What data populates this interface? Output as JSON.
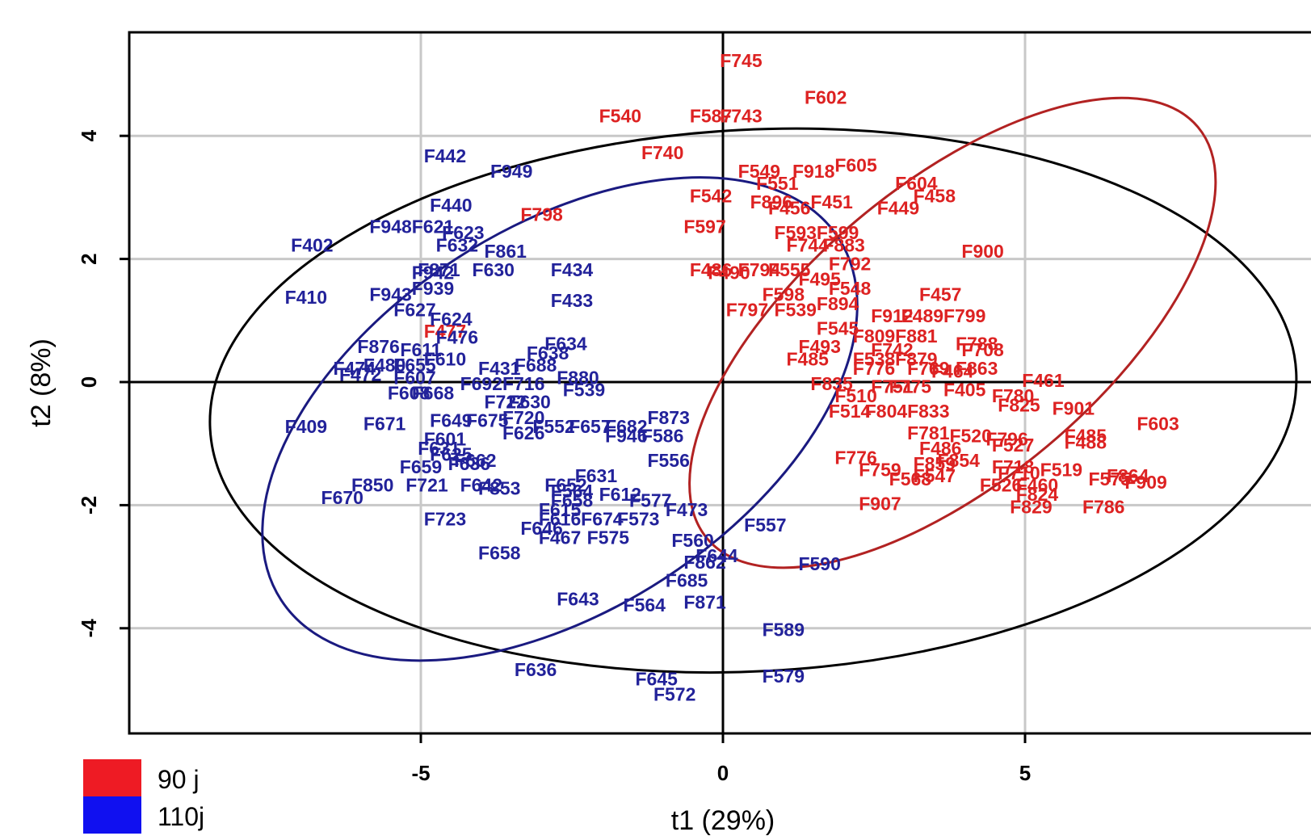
{
  "chart_data": {
    "type": "scatter",
    "xlabel": "t1 (29%)",
    "ylabel": "t2 (8%)",
    "xlim": [
      -9.5,
      9.6
    ],
    "ylim": [
      -5.7,
      5.7
    ],
    "x_ticks": [
      {
        "value": -5,
        "label": "-5"
      },
      {
        "value": 0,
        "label": "0"
      },
      {
        "value": 5,
        "label": "5"
      }
    ],
    "y_ticks": [
      {
        "value": -4,
        "label": "-4"
      },
      {
        "value": -2,
        "label": "-2"
      },
      {
        "value": 0,
        "label": "0"
      },
      {
        "value": 2,
        "label": "2"
      },
      {
        "value": 4,
        "label": "4"
      }
    ],
    "grid": true,
    "legend": {
      "position": "bottom-left"
    },
    "ellipses": [
      {
        "name": "hotelling",
        "color": "#000000",
        "cx": 0.5,
        "cy": -0.3,
        "rx": 9.0,
        "ry": 4.4,
        "angle": -3
      },
      {
        "name": "group-110j",
        "color": "#1a1a80",
        "cx": -2.7,
        "cy": -0.6,
        "rx": 5.5,
        "ry": 3.1,
        "angle": -33
      },
      {
        "name": "group-90j",
        "color": "#b22222",
        "cx": 3.8,
        "cy": 0.8,
        "rx": 5.3,
        "ry": 2.4,
        "angle": -40
      }
    ],
    "series": [
      {
        "name": "90 j",
        "color": "#dd2222",
        "points": [
          {
            "label": "F745",
            "x": 0.3,
            "y": 5.2
          },
          {
            "label": "F540",
            "x": -1.7,
            "y": 4.3
          },
          {
            "label": "F587",
            "x": -0.2,
            "y": 4.3
          },
          {
            "label": "F743",
            "x": 0.3,
            "y": 4.3
          },
          {
            "label": "F602",
            "x": 1.7,
            "y": 4.6
          },
          {
            "label": "F740",
            "x": -1.0,
            "y": 3.7
          },
          {
            "label": "F549",
            "x": 0.6,
            "y": 3.4
          },
          {
            "label": "F918",
            "x": 1.5,
            "y": 3.4
          },
          {
            "label": "F605",
            "x": 2.2,
            "y": 3.5
          },
          {
            "label": "F604",
            "x": 3.2,
            "y": 3.2
          },
          {
            "label": "F551",
            "x": 0.9,
            "y": 3.2
          },
          {
            "label": "F542",
            "x": -0.2,
            "y": 3.0
          },
          {
            "label": "F896",
            "x": 0.8,
            "y": 2.9
          },
          {
            "label": "F451",
            "x": 1.8,
            "y": 2.9
          },
          {
            "label": "F458",
            "x": 3.5,
            "y": 3.0
          },
          {
            "label": "F456",
            "x": 1.1,
            "y": 2.8
          },
          {
            "label": "F449",
            "x": 2.9,
            "y": 2.8
          },
          {
            "label": "F798",
            "x": -3.0,
            "y": 2.7
          },
          {
            "label": "F597",
            "x": -0.3,
            "y": 2.5
          },
          {
            "label": "F593",
            "x": 1.2,
            "y": 2.4
          },
          {
            "label": "F599",
            "x": 1.9,
            "y": 2.4
          },
          {
            "label": "F744",
            "x": 1.4,
            "y": 2.2
          },
          {
            "label": "F883",
            "x": 2.0,
            "y": 2.2
          },
          {
            "label": "F900",
            "x": 4.3,
            "y": 2.1
          },
          {
            "label": "F792",
            "x": 2.1,
            "y": 1.9
          },
          {
            "label": "F486",
            "x": -0.2,
            "y": 1.8
          },
          {
            "label": "F794",
            "x": 0.6,
            "y": 1.8
          },
          {
            "label": "F555",
            "x": 1.1,
            "y": 1.8
          },
          {
            "label": "F490",
            "x": 0.1,
            "y": 1.75
          },
          {
            "label": "F495",
            "x": 1.6,
            "y": 1.65
          },
          {
            "label": "F548",
            "x": 2.1,
            "y": 1.5
          },
          {
            "label": "F598",
            "x": 1.0,
            "y": 1.4
          },
          {
            "label": "F894",
            "x": 1.9,
            "y": 1.25
          },
          {
            "label": "F457",
            "x": 3.6,
            "y": 1.4
          },
          {
            "label": "F797",
            "x": 0.4,
            "y": 1.15
          },
          {
            "label": "F539",
            "x": 1.2,
            "y": 1.15
          },
          {
            "label": "F912",
            "x": 2.8,
            "y": 1.05
          },
          {
            "label": "F489",
            "x": 3.3,
            "y": 1.05
          },
          {
            "label": "F799",
            "x": 4.0,
            "y": 1.05
          },
          {
            "label": "F545",
            "x": 1.9,
            "y": 0.85
          },
          {
            "label": "F809",
            "x": 2.5,
            "y": 0.72
          },
          {
            "label": "F881",
            "x": 3.2,
            "y": 0.72
          },
          {
            "label": "F788",
            "x": 4.2,
            "y": 0.6
          },
          {
            "label": "F493",
            "x": 1.6,
            "y": 0.55
          },
          {
            "label": "F742",
            "x": 2.8,
            "y": 0.5
          },
          {
            "label": "F708",
            "x": 4.3,
            "y": 0.5
          },
          {
            "label": "F485",
            "x": 1.4,
            "y": 0.35
          },
          {
            "label": "F538",
            "x": 2.5,
            "y": 0.35
          },
          {
            "label": "F879",
            "x": 3.2,
            "y": 0.35
          },
          {
            "label": "F776",
            "x": 2.5,
            "y": 0.2
          },
          {
            "label": "F769",
            "x": 3.4,
            "y": 0.2
          },
          {
            "label": "F863",
            "x": 4.2,
            "y": 0.2
          },
          {
            "label": "F464",
            "x": 3.8,
            "y": 0.15
          },
          {
            "label": "F461",
            "x": 5.3,
            "y": 0.0
          },
          {
            "label": "F835",
            "x": 1.8,
            "y": -0.05
          },
          {
            "label": "F751",
            "x": 2.8,
            "y": -0.1
          },
          {
            "label": "F775",
            "x": 3.1,
            "y": -0.1
          },
          {
            "label": "F405",
            "x": 4.0,
            "y": -0.15
          },
          {
            "label": "F780",
            "x": 4.8,
            "y": -0.25
          },
          {
            "label": "F825",
            "x": 4.9,
            "y": -0.4
          },
          {
            "label": "F901",
            "x": 5.8,
            "y": -0.45
          },
          {
            "label": "F510",
            "x": 2.2,
            "y": -0.25
          },
          {
            "label": "F514",
            "x": 2.1,
            "y": -0.5
          },
          {
            "label": "F804",
            "x": 2.7,
            "y": -0.5
          },
          {
            "label": "F833",
            "x": 3.4,
            "y": -0.5
          },
          {
            "label": "F603",
            "x": 7.2,
            "y": -0.7
          },
          {
            "label": "F781",
            "x": 3.4,
            "y": -0.85
          },
          {
            "label": "F520",
            "x": 4.1,
            "y": -0.9
          },
          {
            "label": "F796",
            "x": 4.7,
            "y": -0.95
          },
          {
            "label": "F485",
            "x": 6.0,
            "y": -0.9
          },
          {
            "label": "F488",
            "x": 6.0,
            "y": -1.0
          },
          {
            "label": "F527",
            "x": 4.8,
            "y": -1.05
          },
          {
            "label": "F486",
            "x": 3.6,
            "y": -1.1
          },
          {
            "label": "F776",
            "x": 2.2,
            "y": -1.25
          },
          {
            "label": "F854",
            "x": 3.9,
            "y": -1.3
          },
          {
            "label": "F859",
            "x": 3.5,
            "y": -1.35
          },
          {
            "label": "F718",
            "x": 4.8,
            "y": -1.4
          },
          {
            "label": "F519",
            "x": 5.6,
            "y": -1.45
          },
          {
            "label": "F759",
            "x": 2.6,
            "y": -1.45
          },
          {
            "label": "F547",
            "x": 3.5,
            "y": -1.55
          },
          {
            "label": "F710",
            "x": 4.9,
            "y": -1.5
          },
          {
            "label": "F568",
            "x": 3.1,
            "y": -1.6
          },
          {
            "label": "F864",
            "x": 6.7,
            "y": -1.55
          },
          {
            "label": "F909",
            "x": 7.0,
            "y": -1.65
          },
          {
            "label": "F575",
            "x": 6.4,
            "y": -1.6
          },
          {
            "label": "F526",
            "x": 4.6,
            "y": -1.7
          },
          {
            "label": "F460",
            "x": 5.2,
            "y": -1.7
          },
          {
            "label": "F824",
            "x": 5.2,
            "y": -1.85
          },
          {
            "label": "F907",
            "x": 2.6,
            "y": -2.0
          },
          {
            "label": "F829",
            "x": 5.1,
            "y": -2.05
          },
          {
            "label": "F786",
            "x": 6.3,
            "y": -2.05
          },
          {
            "label": "F477",
            "x": -4.6,
            "y": 0.8
          }
        ]
      },
      {
        "name": "110j",
        "color": "#22229a",
        "points": [
          {
            "label": "F442",
            "x": -4.6,
            "y": 3.65
          },
          {
            "label": "F949",
            "x": -3.5,
            "y": 3.4
          },
          {
            "label": "F440",
            "x": -4.5,
            "y": 2.85
          },
          {
            "label": "F948",
            "x": -5.5,
            "y": 2.5
          },
          {
            "label": "F621",
            "x": -4.8,
            "y": 2.5
          },
          {
            "label": "F623",
            "x": -4.3,
            "y": 2.4
          },
          {
            "label": "F402",
            "x": -6.8,
            "y": 2.2
          },
          {
            "label": "F632",
            "x": -4.4,
            "y": 2.2
          },
          {
            "label": "F861",
            "x": -3.6,
            "y": 2.1
          },
          {
            "label": "F871",
            "x": -4.7,
            "y": 1.8
          },
          {
            "label": "F630",
            "x": -3.8,
            "y": 1.8
          },
          {
            "label": "F434",
            "x": -2.5,
            "y": 1.8
          },
          {
            "label": "F942",
            "x": -4.8,
            "y": 1.75
          },
          {
            "label": "F939",
            "x": -4.8,
            "y": 1.5
          },
          {
            "label": "F410",
            "x": -6.9,
            "y": 1.35
          },
          {
            "label": "F943",
            "x": -5.5,
            "y": 1.4
          },
          {
            "label": "F433",
            "x": -2.5,
            "y": 1.3
          },
          {
            "label": "F627",
            "x": -5.1,
            "y": 1.15
          },
          {
            "label": "F624",
            "x": -4.5,
            "y": 1.0
          },
          {
            "label": "F476",
            "x": -4.4,
            "y": 0.7
          },
          {
            "label": "F876",
            "x": -5.7,
            "y": 0.55
          },
          {
            "label": "F611",
            "x": -5.0,
            "y": 0.5
          },
          {
            "label": "F634",
            "x": -2.6,
            "y": 0.6
          },
          {
            "label": "F638",
            "x": -2.9,
            "y": 0.45
          },
          {
            "label": "F610",
            "x": -4.6,
            "y": 0.35
          },
          {
            "label": "F480",
            "x": -5.6,
            "y": 0.25
          },
          {
            "label": "F655",
            "x": -5.1,
            "y": 0.25
          },
          {
            "label": "F474",
            "x": -6.1,
            "y": 0.2
          },
          {
            "label": "F472",
            "x": -6.0,
            "y": 0.1
          },
          {
            "label": "F431",
            "x": -3.7,
            "y": 0.2
          },
          {
            "label": "F688",
            "x": -3.1,
            "y": 0.25
          },
          {
            "label": "F607",
            "x": -5.1,
            "y": 0.05
          },
          {
            "label": "F880",
            "x": -2.4,
            "y": 0.05
          },
          {
            "label": "F692",
            "x": -4.0,
            "y": -0.05
          },
          {
            "label": "F716",
            "x": -3.3,
            "y": -0.05
          },
          {
            "label": "F539",
            "x": -2.3,
            "y": -0.15
          },
          {
            "label": "F608",
            "x": -5.2,
            "y": -0.2
          },
          {
            "label": "F668",
            "x": -4.8,
            "y": -0.2
          },
          {
            "label": "F722",
            "x": -3.6,
            "y": -0.35
          },
          {
            "label": "F630",
            "x": -3.2,
            "y": -0.35
          },
          {
            "label": "F671",
            "x": -5.6,
            "y": -0.7
          },
          {
            "label": "F649",
            "x": -4.5,
            "y": -0.65
          },
          {
            "label": "F675",
            "x": -3.9,
            "y": -0.65
          },
          {
            "label": "F720",
            "x": -3.3,
            "y": -0.6
          },
          {
            "label": "F552",
            "x": -2.8,
            "y": -0.75
          },
          {
            "label": "F657",
            "x": -2.2,
            "y": -0.75
          },
          {
            "label": "F682",
            "x": -1.6,
            "y": -0.75
          },
          {
            "label": "F873",
            "x": -0.9,
            "y": -0.6
          },
          {
            "label": "F409",
            "x": -6.9,
            "y": -0.75
          },
          {
            "label": "F626",
            "x": -3.3,
            "y": -0.85
          },
          {
            "label": "F946",
            "x": -1.6,
            "y": -0.9
          },
          {
            "label": "F586",
            "x": -1.0,
            "y": -0.9
          },
          {
            "label": "F601",
            "x": -4.6,
            "y": -0.95
          },
          {
            "label": "F631",
            "x": -4.7,
            "y": -1.1
          },
          {
            "label": "F625",
            "x": -4.5,
            "y": -1.2
          },
          {
            "label": "F662",
            "x": -4.1,
            "y": -1.3
          },
          {
            "label": "F636",
            "x": -4.2,
            "y": -1.35
          },
          {
            "label": "F556",
            "x": -0.9,
            "y": -1.3
          },
          {
            "label": "F659",
            "x": -5.0,
            "y": -1.4
          },
          {
            "label": "F631",
            "x": -2.1,
            "y": -1.55
          },
          {
            "label": "F850",
            "x": -5.8,
            "y": -1.7
          },
          {
            "label": "F721",
            "x": -4.9,
            "y": -1.7
          },
          {
            "label": "F642",
            "x": -4.0,
            "y": -1.7
          },
          {
            "label": "F853",
            "x": -3.7,
            "y": -1.75
          },
          {
            "label": "F652",
            "x": -2.6,
            "y": -1.7
          },
          {
            "label": "F564",
            "x": -2.5,
            "y": -1.8
          },
          {
            "label": "F612",
            "x": -1.7,
            "y": -1.85
          },
          {
            "label": "F670",
            "x": -6.3,
            "y": -1.9
          },
          {
            "label": "F658",
            "x": -2.5,
            "y": -1.95
          },
          {
            "label": "F577",
            "x": -1.2,
            "y": -1.95
          },
          {
            "label": "F615",
            "x": -2.7,
            "y": -2.1
          },
          {
            "label": "F473",
            "x": -0.6,
            "y": -2.1
          },
          {
            "label": "F723",
            "x": -4.6,
            "y": -2.25
          },
          {
            "label": "F616",
            "x": -2.7,
            "y": -2.25
          },
          {
            "label": "F674",
            "x": -2.0,
            "y": -2.25
          },
          {
            "label": "F573",
            "x": -1.4,
            "y": -2.25
          },
          {
            "label": "F557",
            "x": 0.7,
            "y": -2.35
          },
          {
            "label": "F646",
            "x": -3.0,
            "y": -2.4
          },
          {
            "label": "F467",
            "x": -2.7,
            "y": -2.55
          },
          {
            "label": "F575",
            "x": -1.9,
            "y": -2.55
          },
          {
            "label": "F560",
            "x": -0.5,
            "y": -2.6
          },
          {
            "label": "F658",
            "x": -3.7,
            "y": -2.8
          },
          {
            "label": "F644",
            "x": -0.1,
            "y": -2.85
          },
          {
            "label": "F862",
            "x": -0.3,
            "y": -2.95
          },
          {
            "label": "F590",
            "x": 1.6,
            "y": -2.98
          },
          {
            "label": "F685",
            "x": -0.6,
            "y": -3.25
          },
          {
            "label": "F643",
            "x": -2.4,
            "y": -3.55
          },
          {
            "label": "F564",
            "x": -1.3,
            "y": -3.65
          },
          {
            "label": "F871",
            "x": -0.3,
            "y": -3.6
          },
          {
            "label": "F589",
            "x": 1.0,
            "y": -4.05
          },
          {
            "label": "F636",
            "x": -3.1,
            "y": -4.7
          },
          {
            "label": "F645",
            "x": -1.1,
            "y": -4.85
          },
          {
            "label": "F579",
            "x": 1.0,
            "y": -4.8
          },
          {
            "label": "F572",
            "x": -0.8,
            "y": -5.1
          }
        ]
      }
    ]
  },
  "legend_swatches": [
    {
      "color": "#ee1b24"
    },
    {
      "color": "#1010f0"
    }
  ]
}
